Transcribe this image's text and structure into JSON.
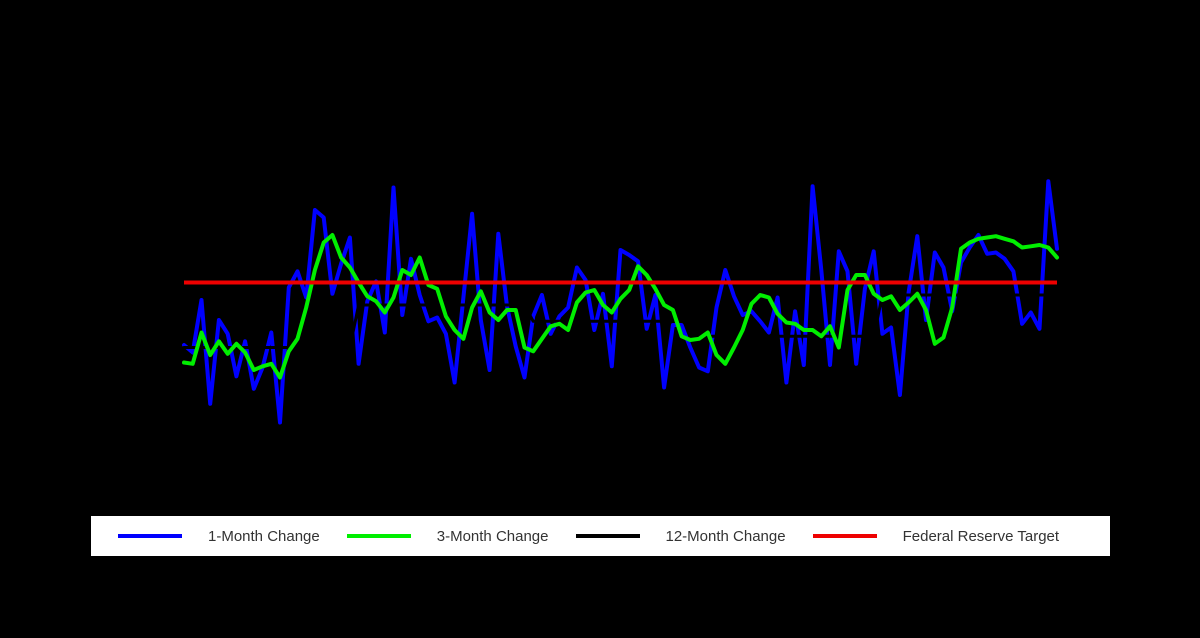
{
  "chart_data": {
    "type": "line",
    "title": "",
    "xlabel": "",
    "ylabel": "",
    "ylim": [
      -1.5,
      1.5
    ],
    "grid": false,
    "legend_position": "bottom",
    "x_count": 101,
    "series": [
      {
        "name": "1-Month Change",
        "color": "#0000ff",
        "values": [
          -0.5,
          -0.56,
          -0.14,
          -0.97,
          -0.3,
          -0.41,
          -0.75,
          -0.47,
          -0.85,
          -0.68,
          -0.4,
          -1.12,
          -0.04,
          0.09,
          -0.12,
          0.58,
          0.52,
          -0.09,
          0.15,
          0.36,
          -0.65,
          -0.15,
          0.01,
          -0.4,
          0.76,
          -0.26,
          0.19,
          -0.1,
          -0.31,
          -0.28,
          -0.41,
          -0.8,
          -0.12,
          0.55,
          -0.3,
          -0.7,
          0.39,
          -0.19,
          -0.51,
          -0.76,
          -0.27,
          -0.1,
          -0.41,
          -0.27,
          -0.2,
          0.12,
          0.02,
          -0.38,
          -0.09,
          -0.67,
          0.26,
          0.22,
          0.17,
          -0.37,
          -0.1,
          -0.84,
          -0.34,
          -0.34,
          -0.52,
          -0.68,
          -0.71,
          -0.2,
          0.1,
          -0.11,
          -0.26,
          -0.23,
          -0.31,
          -0.4,
          -0.12,
          -0.8,
          -0.23,
          -0.66,
          0.77,
          0.1,
          -0.66,
          0.25,
          0.09,
          -0.65,
          -0.05,
          0.25,
          -0.41,
          -0.36,
          -0.9,
          -0.08,
          0.37,
          -0.3,
          0.24,
          0.12,
          -0.23,
          0.16,
          0.28,
          0.38,
          0.23,
          0.24,
          0.19,
          0.09,
          -0.33,
          -0.24,
          -0.37,
          0.81,
          0.27
        ]
      },
      {
        "name": "3-Month Change",
        "color": "#00ee00",
        "values": [
          -0.64,
          -0.65,
          -0.4,
          -0.58,
          -0.47,
          -0.57,
          -0.49,
          -0.56,
          -0.7,
          -0.67,
          -0.65,
          -0.76,
          -0.55,
          -0.45,
          -0.2,
          0.1,
          0.32,
          0.38,
          0.2,
          0.12,
          0.0,
          -0.11,
          -0.15,
          -0.24,
          -0.12,
          0.1,
          0.06,
          0.2,
          -0.02,
          -0.05,
          -0.27,
          -0.38,
          -0.45,
          -0.2,
          -0.07,
          -0.24,
          -0.3,
          -0.22,
          -0.22,
          -0.52,
          -0.55,
          -0.45,
          -0.35,
          -0.33,
          -0.38,
          -0.16,
          -0.08,
          -0.06,
          -0.18,
          -0.24,
          -0.13,
          -0.06,
          0.13,
          0.06,
          -0.05,
          -0.18,
          -0.22,
          -0.43,
          -0.46,
          -0.45,
          -0.4,
          -0.58,
          -0.65,
          -0.52,
          -0.38,
          -0.17,
          -0.1,
          -0.12,
          -0.25,
          -0.32,
          -0.33,
          -0.38,
          -0.38,
          -0.43,
          -0.35,
          -0.52,
          -0.06,
          0.06,
          0.06,
          -0.09,
          -0.14,
          -0.11,
          -0.22,
          -0.16,
          -0.09,
          -0.22,
          -0.49,
          -0.44,
          -0.2,
          0.27,
          0.32,
          0.35,
          0.36,
          0.37,
          0.35,
          0.33,
          0.28,
          0.29,
          0.3,
          0.28,
          0.2
        ]
      },
      {
        "name": "12-Month Change",
        "color": "#000000",
        "values": [
          -0.52,
          -0.52,
          -0.52,
          -0.52,
          -0.52,
          -0.52,
          -0.52,
          -0.52,
          -0.52,
          -0.52,
          -0.52,
          -0.52,
          -0.52,
          -0.52,
          -0.52,
          -0.52,
          -0.52,
          -0.52,
          -0.52,
          -0.52,
          -0.18,
          -0.18,
          -0.18,
          -0.18,
          -0.18,
          -0.18,
          -0.18,
          -0.18,
          -0.18,
          -0.18,
          -0.18,
          -0.18,
          -0.18,
          -0.18,
          -0.18,
          -0.18,
          -0.18,
          -0.18,
          -0.18,
          -0.18,
          -0.31,
          -0.31,
          -0.31,
          -0.31,
          -0.31,
          -0.31,
          -0.31,
          -0.31,
          -0.31,
          -0.31,
          -0.31,
          -0.31,
          -0.31,
          -0.31,
          -0.31,
          -0.31,
          -0.31,
          -0.31,
          -0.31,
          -0.31,
          -0.43,
          -0.43,
          -0.43,
          -0.43,
          -0.43,
          -0.43,
          -0.43,
          -0.43,
          -0.43,
          -0.43,
          -0.43,
          -0.43,
          -0.43,
          -0.43,
          -0.43,
          -0.43,
          -0.43,
          -0.43,
          -0.43,
          -0.43,
          -0.1,
          -0.1,
          -0.1,
          -0.1,
          -0.1,
          -0.1,
          -0.1,
          -0.1,
          -0.1,
          -0.1,
          -0.1,
          -0.1,
          -0.1,
          -0.1,
          -0.1,
          -0.1,
          -0.1,
          -0.1,
          -0.1,
          -0.1,
          -0.1
        ]
      },
      {
        "name": "Federal Reserve Target",
        "color": "#ee0000",
        "values": [
          0.0,
          0.0
        ]
      }
    ]
  },
  "legend": {
    "items": [
      {
        "label": "1-Month Change",
        "color": "#0000ff"
      },
      {
        "label": "3-Month Change",
        "color": "#00ee00"
      },
      {
        "label": "12-Month Change",
        "color": "#000000"
      },
      {
        "label": "Federal Reserve Target",
        "color": "#ee0000"
      }
    ]
  }
}
